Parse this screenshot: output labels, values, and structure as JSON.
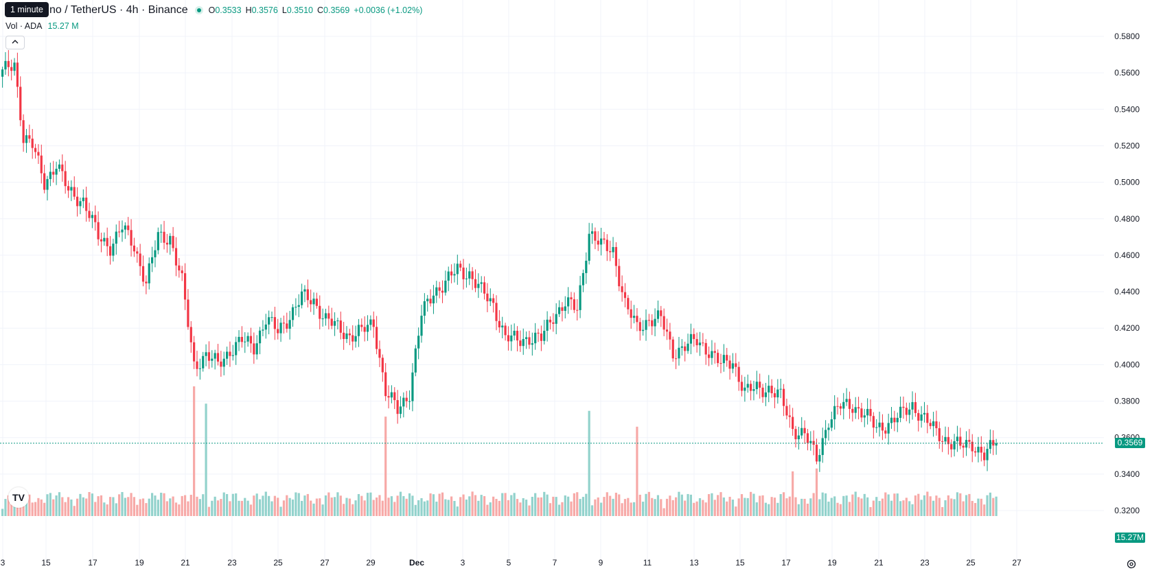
{
  "legend": {
    "symbol": "Cardano / TetherUS · 4h · Binance",
    "symbol_visible": "no / TetherUS · 4h · Binance",
    "open_label": "O",
    "open": "0.3533",
    "high_label": "H",
    "high": "0.3576",
    "low_label": "L",
    "low": "0.3510",
    "close_label": "C",
    "close": "0.3569",
    "change": "+0.0036 (+1.02%)"
  },
  "tooltip": "1 minute",
  "volume": {
    "label": "Vol · ADA",
    "value": "15.27 M"
  },
  "collapse_icon": "chevron-up-icon",
  "price_tags": {
    "last_price": "0.3569",
    "last_volume": "15.27M"
  },
  "colors": {
    "up": "#089981",
    "down": "#f23645",
    "up_vol": "#92d2cc",
    "down_vol": "#f7a9a7"
  },
  "chart_data": {
    "type": "candlestick",
    "y_axis": {
      "ticks": [
        "0.5800",
        "0.5600",
        "0.5400",
        "0.5200",
        "0.5000",
        "0.4800",
        "0.4600",
        "0.4400",
        "0.4200",
        "0.4000",
        "0.3800",
        "0.3600",
        "0.3400",
        "0.3200"
      ],
      "range": [
        0.315,
        0.585
      ]
    },
    "x_axis": {
      "ticks": [
        "3",
        "15",
        "17",
        "19",
        "21",
        "23",
        "25",
        "27",
        "29",
        "Dec",
        "3",
        "5",
        "7",
        "9",
        "11",
        "13",
        "15",
        "17",
        "19",
        "21",
        "23",
        "25",
        "27"
      ]
    },
    "grid": true,
    "anchors": [
      [
        0,
        0.56
      ],
      [
        4,
        0.565
      ],
      [
        7,
        0.525
      ],
      [
        10,
        0.52
      ],
      [
        14,
        0.5
      ],
      [
        18,
        0.51
      ],
      [
        22,
        0.495
      ],
      [
        27,
        0.49
      ],
      [
        32,
        0.47
      ],
      [
        36,
        0.465
      ],
      [
        40,
        0.475
      ],
      [
        44,
        0.465
      ],
      [
        48,
        0.445
      ],
      [
        52,
        0.47
      ],
      [
        56,
        0.47
      ],
      [
        60,
        0.445
      ],
      [
        64,
        0.4
      ],
      [
        68,
        0.405
      ],
      [
        72,
        0.4
      ],
      [
        76,
        0.408
      ],
      [
        80,
        0.413
      ],
      [
        84,
        0.41
      ],
      [
        88,
        0.425
      ],
      [
        92,
        0.418
      ],
      [
        96,
        0.427
      ],
      [
        100,
        0.437
      ],
      [
        104,
        0.435
      ],
      [
        108,
        0.425
      ],
      [
        112,
        0.42
      ],
      [
        116,
        0.416
      ],
      [
        120,
        0.418
      ],
      [
        124,
        0.423
      ],
      [
        128,
        0.385
      ],
      [
        132,
        0.375
      ],
      [
        136,
        0.385
      ],
      [
        140,
        0.427
      ],
      [
        144,
        0.44
      ],
      [
        148,
        0.445
      ],
      [
        152,
        0.452
      ],
      [
        156,
        0.45
      ],
      [
        160,
        0.44
      ],
      [
        164,
        0.433
      ],
      [
        168,
        0.415
      ],
      [
        172,
        0.413
      ],
      [
        176,
        0.415
      ],
      [
        180,
        0.414
      ],
      [
        184,
        0.427
      ],
      [
        188,
        0.434
      ],
      [
        192,
        0.43
      ],
      [
        196,
        0.473
      ],
      [
        200,
        0.465
      ],
      [
        204,
        0.463
      ],
      [
        208,
        0.433
      ],
      [
        212,
        0.42
      ],
      [
        216,
        0.425
      ],
      [
        220,
        0.425
      ],
      [
        224,
        0.407
      ],
      [
        228,
        0.41
      ],
      [
        232,
        0.413
      ],
      [
        236,
        0.408
      ],
      [
        240,
        0.4
      ],
      [
        244,
        0.402
      ],
      [
        248,
        0.385
      ],
      [
        252,
        0.387
      ],
      [
        256,
        0.387
      ],
      [
        260,
        0.382
      ],
      [
        264,
        0.365
      ],
      [
        268,
        0.362
      ],
      [
        272,
        0.348
      ],
      [
        276,
        0.37
      ],
      [
        280,
        0.377
      ],
      [
        284,
        0.378
      ],
      [
        288,
        0.373
      ],
      [
        292,
        0.365
      ],
      [
        296,
        0.368
      ],
      [
        300,
        0.372
      ],
      [
        304,
        0.378
      ],
      [
        308,
        0.37
      ],
      [
        312,
        0.363
      ],
      [
        316,
        0.358
      ],
      [
        320,
        0.355
      ],
      [
        324,
        0.357
      ],
      [
        328,
        0.35
      ],
      [
        332,
        0.3569
      ]
    ],
    "volume_spikes": [
      [
        64,
        0.9
      ],
      [
        68,
        0.78
      ],
      [
        128,
        0.69
      ],
      [
        196,
        0.73
      ],
      [
        212,
        0.62
      ],
      [
        272,
        0.33
      ],
      [
        264,
        0.31
      ]
    ],
    "last_price": 0.3569
  }
}
